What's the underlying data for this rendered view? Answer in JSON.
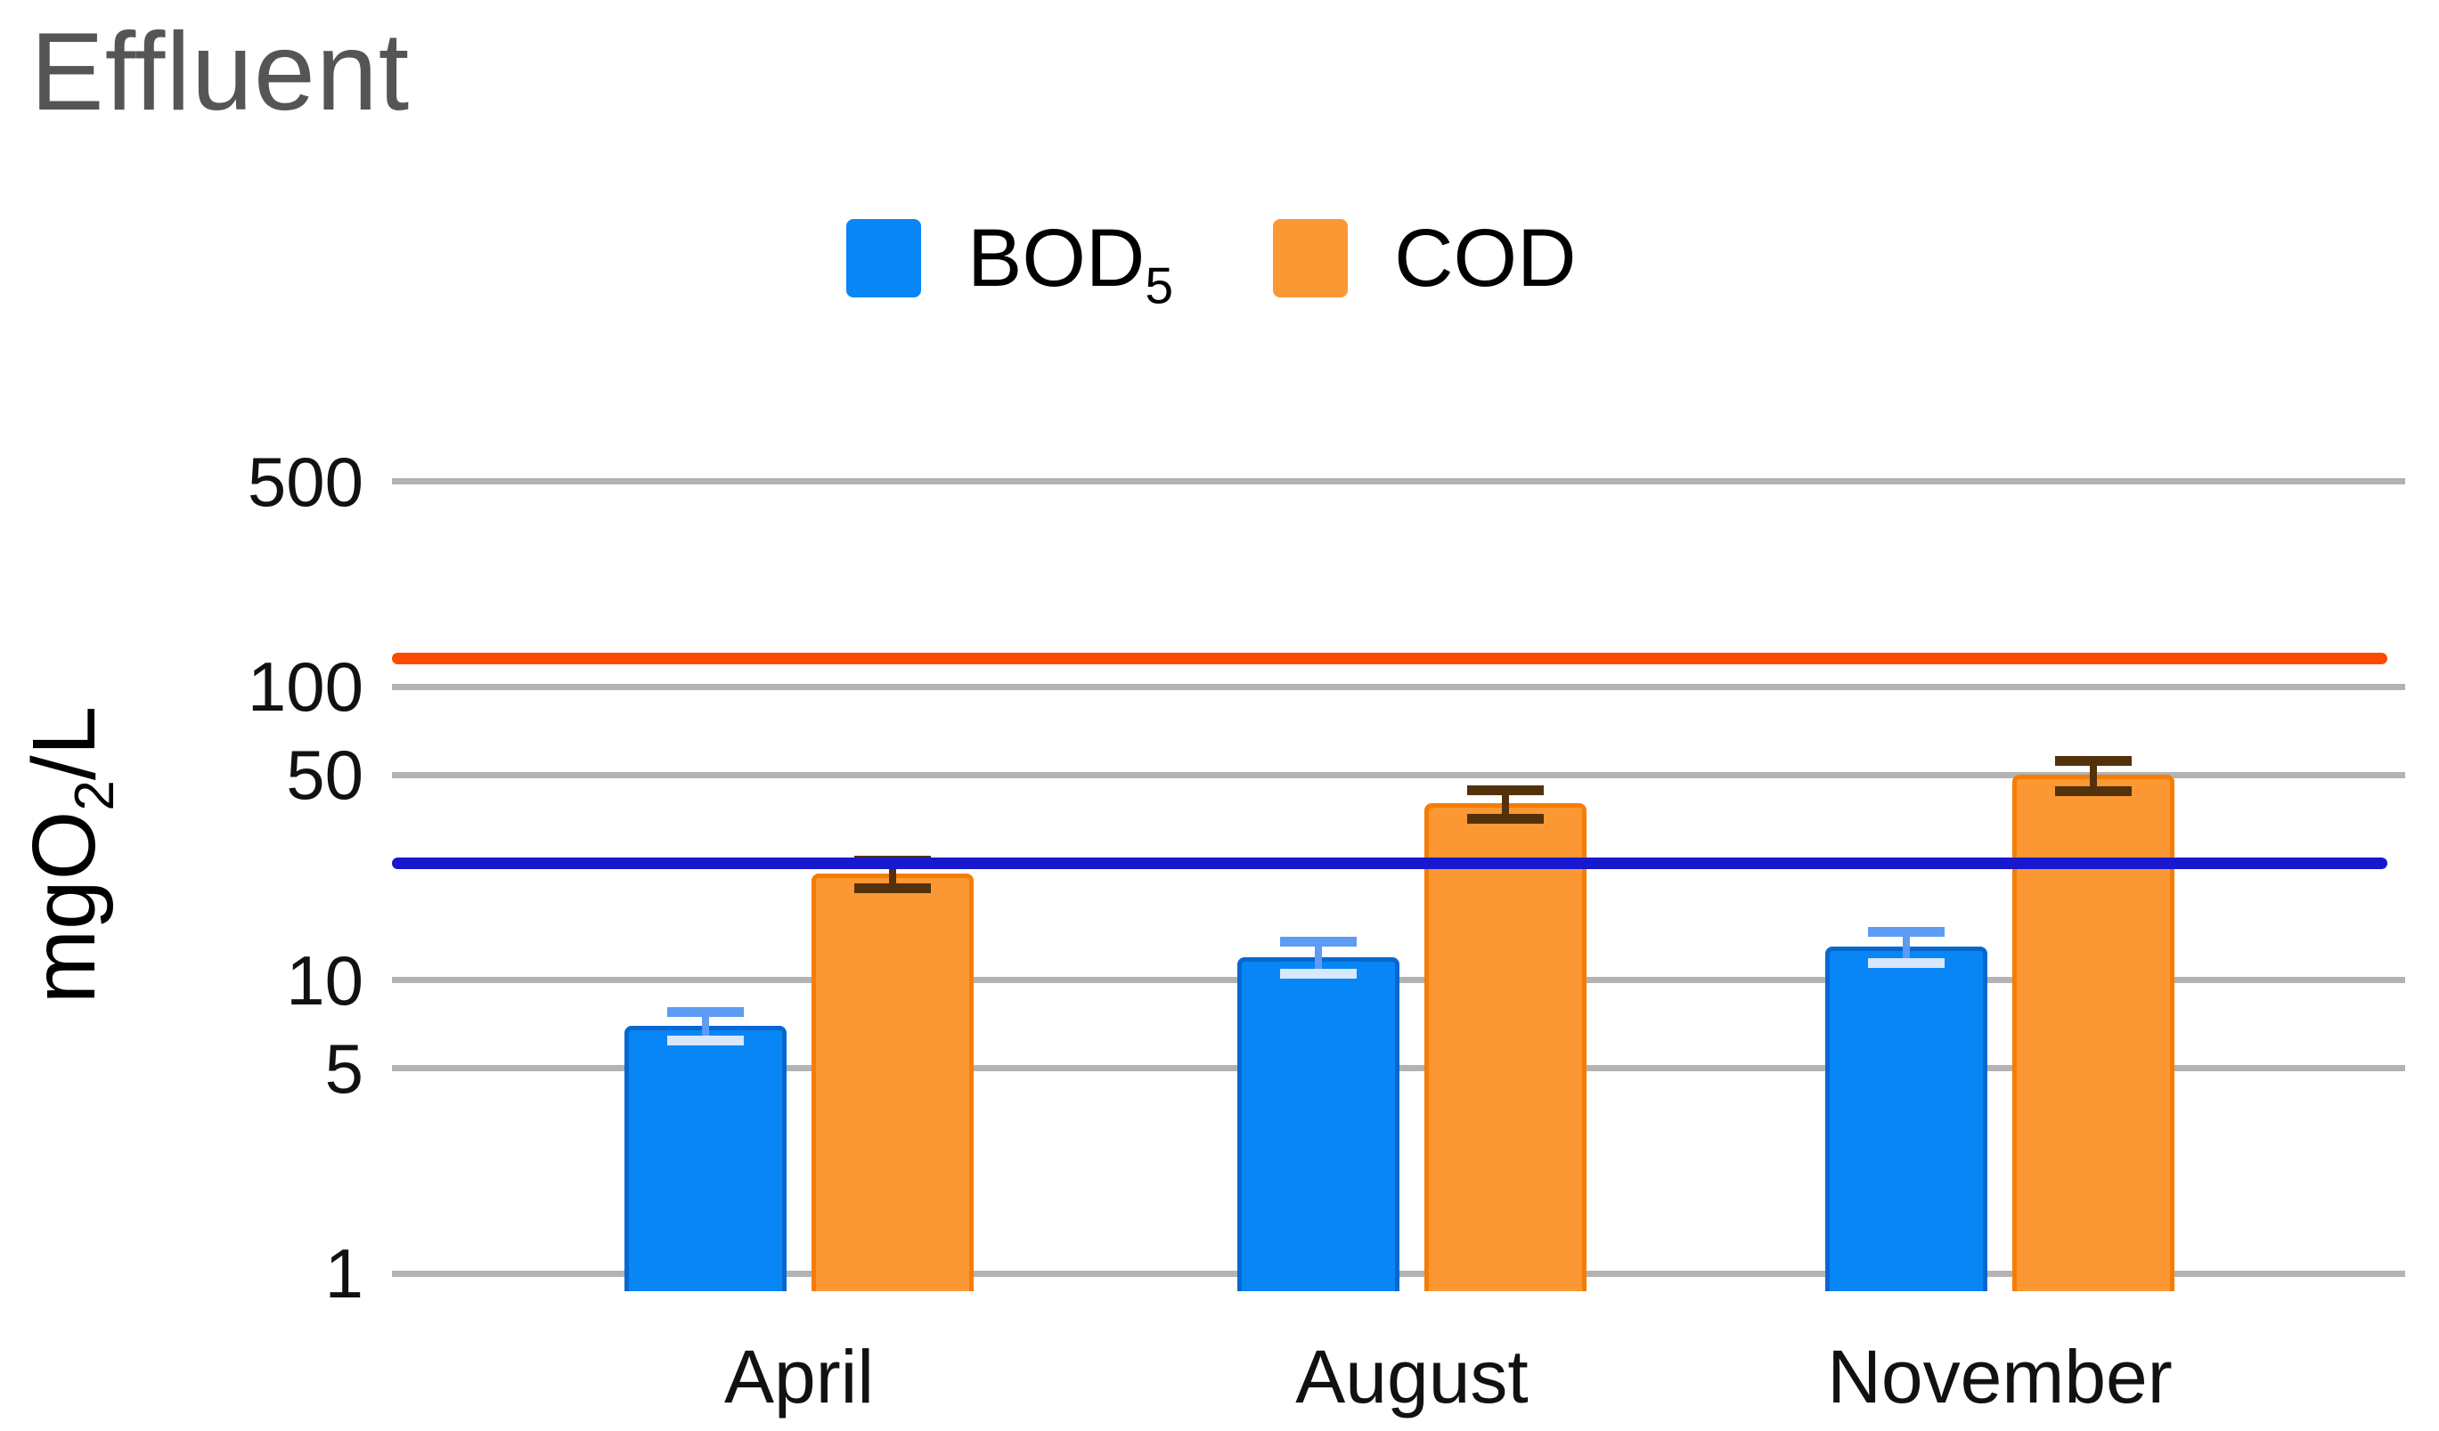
{
  "title": "Effluent",
  "legend": {
    "items": [
      {
        "label": "BOD",
        "sub": "5",
        "color": "#0886f5"
      },
      {
        "label": "COD",
        "sub": "",
        "color": "#fb9833"
      }
    ]
  },
  "y_axis": {
    "title_main": "mgO",
    "title_sub": "2",
    "title_suffix": "/L"
  },
  "x_axis": {
    "categories": [
      "April",
      "August",
      "November"
    ]
  },
  "chart_data": {
    "type": "bar",
    "title": "Effluent",
    "xlabel": "",
    "ylabel": "mgO₂/L",
    "yscale": "log",
    "grid": true,
    "legend_position": "top",
    "categories": [
      "April",
      "August",
      "November"
    ],
    "series": [
      {
        "name": "BOD₅",
        "color": "#0886f5",
        "border_color": "#0668cf",
        "error_color": "#5e9bf3",
        "error_lower_cap_color": "#d8e7fc",
        "values": [
          7,
          12,
          13
        ],
        "errors": [
          0.8,
          1.5,
          1.6
        ]
      },
      {
        "name": "COD",
        "color": "#fb9833",
        "border_color": "#f57d05",
        "error_color": "#53320b",
        "error_lower_cap_color": "#53320b",
        "values": [
          23,
          40,
          50
        ],
        "errors": [
          2.5,
          4.5,
          6
        ]
      }
    ],
    "yticks": [
      500,
      100,
      50,
      10,
      5,
      1
    ],
    "ylim": [
      0.87,
      650
    ],
    "reference_lines": [
      {
        "value": 25,
        "color": "#1818cf"
      },
      {
        "value": 125,
        "color": "#fe4902"
      }
    ]
  }
}
